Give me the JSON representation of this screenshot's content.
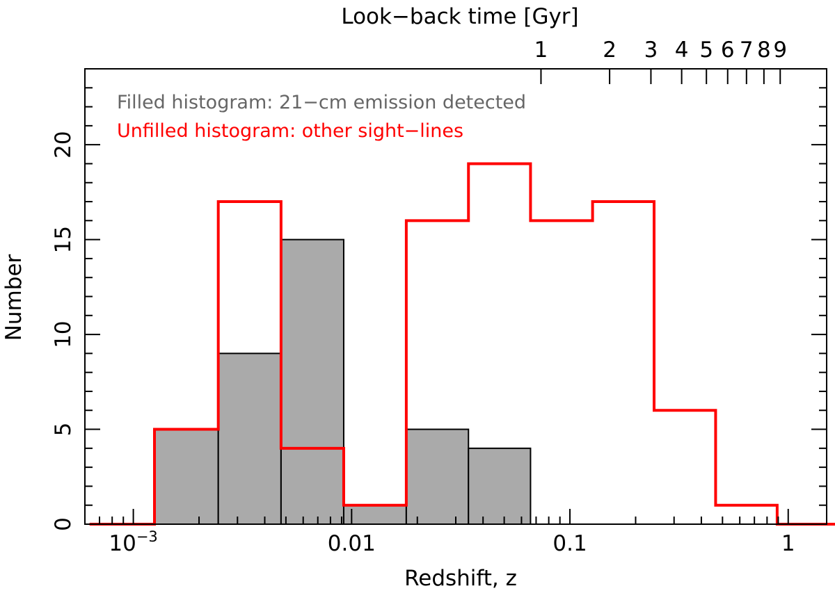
{
  "chart_data": {
    "type": "bar",
    "title": "",
    "xlabel": "Redshift, z",
    "ylabel": "Number",
    "top_axis_label": "Look−back time [Gyr]",
    "x_scale": "log",
    "xlim": [
      0.0006,
      1.5
    ],
    "ylim": [
      0,
      24
    ],
    "x_tick_labels": [
      {
        "value": 0.001,
        "label": "10",
        "sup": "−3"
      },
      {
        "value": 0.01,
        "label": "0.01",
        "sup": ""
      },
      {
        "value": 0.1,
        "label": "0.1",
        "sup": ""
      },
      {
        "value": 1,
        "label": "1",
        "sup": ""
      }
    ],
    "y_ticks": [
      0,
      5,
      10,
      15,
      20
    ],
    "top_ticks": [
      {
        "label": "1",
        "z": 0.0737
      },
      {
        "label": "2",
        "z": 0.152
      },
      {
        "label": "3",
        "z": 0.235
      },
      {
        "label": "4",
        "z": 0.325
      },
      {
        "label": "5",
        "z": 0.422
      },
      {
        "label": "6",
        "z": 0.528
      },
      {
        "label": "7",
        "z": 0.644
      },
      {
        "label": "8",
        "z": 0.774
      },
      {
        "label": "9",
        "z": 0.919
      }
    ],
    "bin_edges": [
      0.00063,
      0.00125,
      0.00245,
      0.00475,
      0.0092,
      0.0178,
      0.0343,
      0.066,
      0.127,
      0.243,
      0.465,
      0.89,
      1.7
    ],
    "series": [
      {
        "name": "Filled histogram: 21−cm emission detected",
        "style": "filled",
        "color": "#aaaaaa",
        "edge_color": "#000000",
        "label_color": "#666666",
        "values": [
          0,
          5,
          9,
          15,
          1,
          5,
          4,
          0,
          0,
          0,
          0,
          0
        ]
      },
      {
        "name": "Unfilled histogram: other sight−lines",
        "style": "step",
        "color": "#ff0000",
        "label_color": "#ff0000",
        "values": [
          0,
          5,
          17,
          4,
          1,
          16,
          19,
          16,
          17,
          6,
          1,
          0
        ]
      }
    ],
    "legend_placement": "top-left",
    "grid": false
  }
}
